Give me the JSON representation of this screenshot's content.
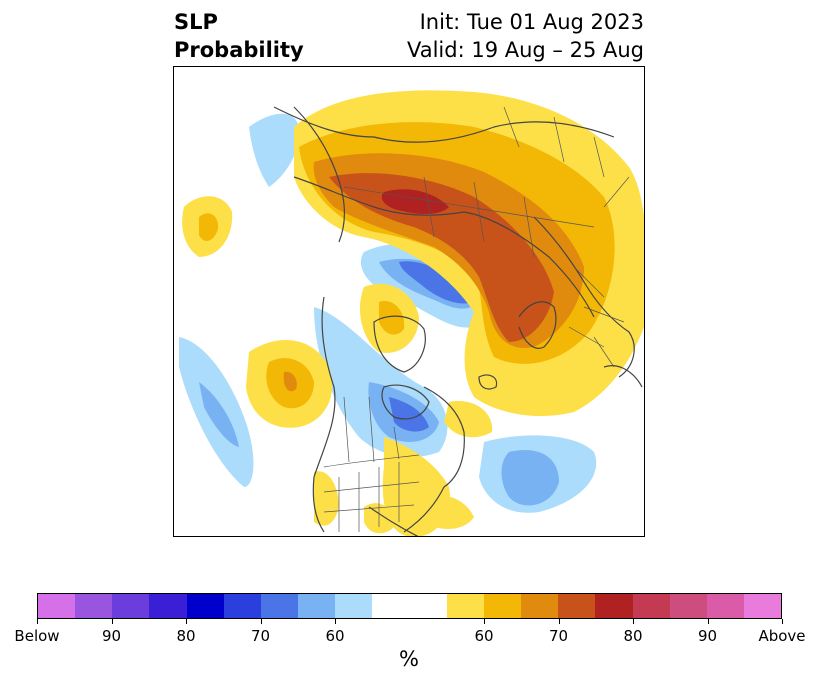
{
  "title": {
    "line1": "SLP",
    "line2": "Probability",
    "init": "Init: Tue 01 Aug 2023",
    "valid": "Valid: 19 Aug – 25 Aug"
  },
  "colorbar": {
    "colors": [
      "#d670e8",
      "#9a55e0",
      "#6a3ddc",
      "#3a1fd6",
      "#0000cc",
      "#2a3fdd",
      "#4b75e6",
      "#78b2f3",
      "#acdcfb",
      "#ffffff",
      "#ffffff",
      "#fde047",
      "#f3b705",
      "#e08a0e",
      "#c8531a",
      "#b02222",
      "#c43a52",
      "#cc4d7e",
      "#da5ca8",
      "#e87bdc"
    ],
    "labels": [
      "Below",
      "90",
      "80",
      "70",
      "60",
      "60",
      "70",
      "80",
      "90",
      "Above"
    ],
    "unit": "%"
  }
}
